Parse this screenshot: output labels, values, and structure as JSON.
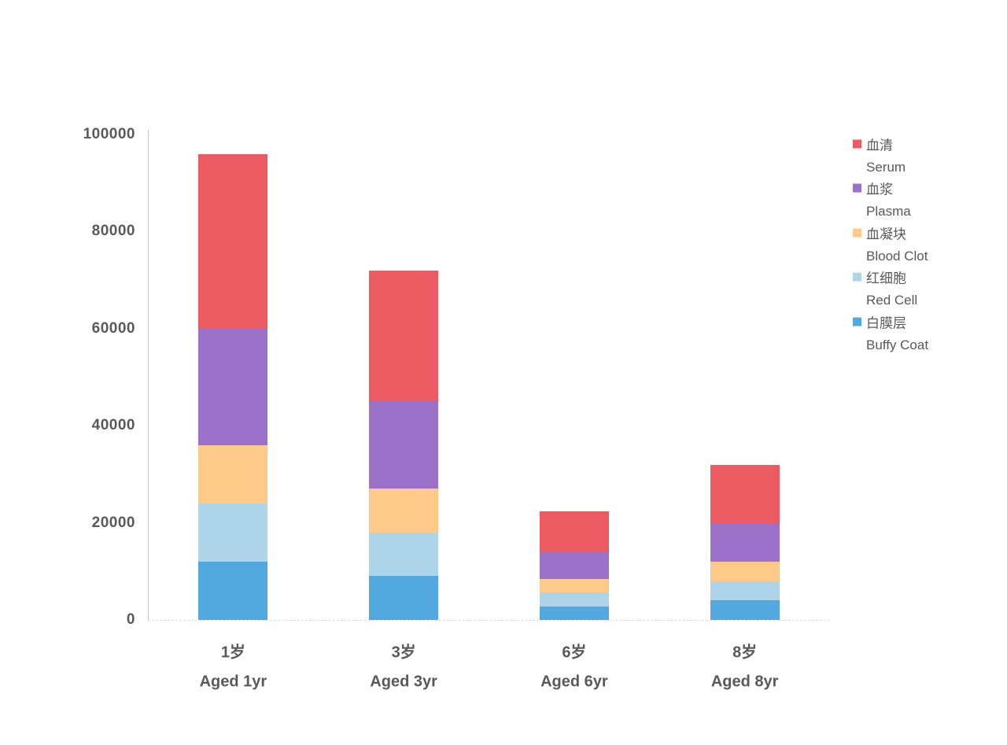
{
  "page": {
    "background_color": "#ffffff",
    "axis_text_color": "#595959",
    "y_axis_line_color": "#c6c6c6",
    "x_axis_line_color": "#d9d9d9"
  },
  "chart_data": {
    "type": "bar",
    "variant": "stacked-column",
    "title": "",
    "grid": false,
    "legend_position": "right",
    "categories": [
      {
        "label_zh": "1岁",
        "label_en": "Aged 1yr"
      },
      {
        "label_zh": "3岁",
        "label_en": "Aged 3yr"
      },
      {
        "label_zh": "6岁",
        "label_en": "Aged 6yr"
      },
      {
        "label_zh": "8岁",
        "label_en": "Aged 8yr"
      }
    ],
    "series": [
      {
        "id": "serum",
        "label_zh": "血清",
        "label_en": "Serum",
        "color": "#EB5B61",
        "values": [
          36000,
          27000,
          8400,
          12000
        ]
      },
      {
        "id": "plasma",
        "label_zh": "血浆",
        "label_en": "Plasma",
        "color": "#9C71C9",
        "values": [
          24000,
          18000,
          5600,
          8000
        ]
      },
      {
        "id": "blood-clot",
        "label_zh": "血凝块",
        "label_en": "Blood Clot",
        "color": "#FDCA89",
        "values": [
          12000,
          9000,
          2800,
          4000
        ]
      },
      {
        "id": "red-cell",
        "label_zh": "红细胞",
        "label_en": "Red Cell",
        "color": "#AED4E9",
        "values": [
          12000,
          9000,
          2800,
          4000
        ]
      },
      {
        "id": "buffy-coat",
        "label_zh": "白膜层",
        "label_en": "Buffy Coat",
        "color": "#54A8E0",
        "values": [
          12000,
          9000,
          2800,
          4000
        ]
      }
    ],
    "stack_order_note": "series listed legend-order (top of stack first); bottom of stack is Buffy Coat",
    "stack_totals": [
      96000,
      72000,
      22400,
      32000
    ],
    "y_axis": {
      "min": 0,
      "max": 100000,
      "tick_step": 20000,
      "tick_labels": [
        "0",
        "20000",
        "40000",
        "60000",
        "80000",
        "100000"
      ]
    }
  }
}
